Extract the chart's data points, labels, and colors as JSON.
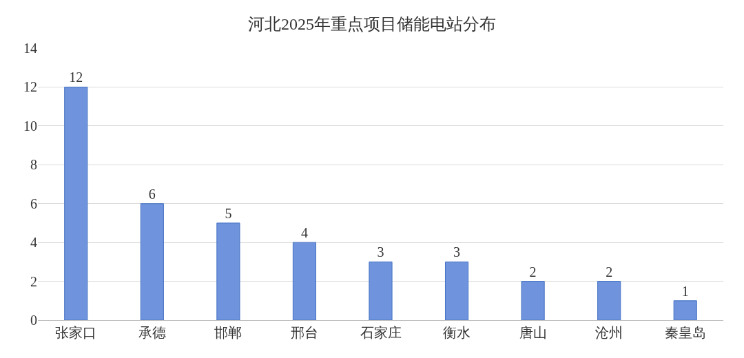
{
  "chart_data": {
    "type": "bar",
    "title": "河北2025年重点项目储能电站分布",
    "categories": [
      "张家口",
      "承德",
      "邯郸",
      "邢台",
      "石家庄",
      "衡水",
      "唐山",
      "沧州",
      "秦皇岛"
    ],
    "values": [
      12,
      6,
      5,
      4,
      3,
      3,
      2,
      2,
      1
    ],
    "color": "#6f93dc",
    "ylim": [
      0,
      14
    ],
    "yticks": [
      0,
      2,
      4,
      6,
      8,
      10,
      12,
      14
    ],
    "grid": "y",
    "data_labels": true,
    "legend": false
  }
}
